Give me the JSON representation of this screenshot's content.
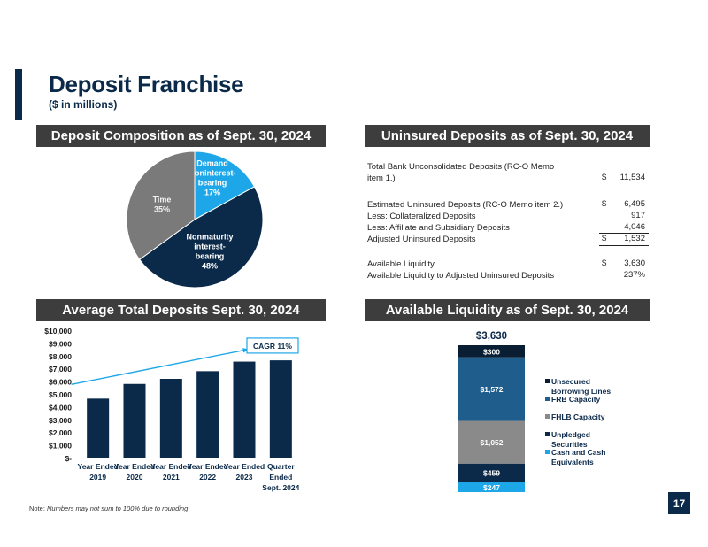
{
  "title": "Deposit Franchise",
  "subtitle": "($ in millions)",
  "headers": {
    "composition": "Deposit Composition as of Sept. 30, 2024",
    "uninsured": "Uninsured Deposits as of Sept. 30, 2024",
    "average": "Average Total Deposits Sept. 30, 2024",
    "liquidity": "Available Liquidity as of Sept. 30, 2024"
  },
  "uninsured_table": {
    "r1_label_line1": "Total Bank Unconsolidated Deposits (RC-O Memo",
    "r1_label_line2": "item 1.)",
    "r1_currency": "$",
    "r1_value": "11,534",
    "r2_label": "Estimated Uninsured Deposits (RC-O Memo item 2.)",
    "r2_currency": "$",
    "r2_value": "6,495",
    "r3_label": "Less: Collateralized Deposits",
    "r3_value": "917",
    "r4_label": "Less: Affiliate and Subsidiary Deposits",
    "r4_value": "4,046",
    "r5_label": "Adjusted Uninsured Deposits",
    "r5_currency": "$",
    "r5_value": "1,532",
    "r6_label": "Available Liquidity",
    "r6_currency": "$",
    "r6_value": "3,630",
    "r7_label": "Available Liquidity to Adjusted Uninsured Deposits",
    "r7_value": "237%"
  },
  "note_prefix": "Note: ",
  "note_text": "Numbers may not sum to 100% due to rounding",
  "page_number": "17",
  "chart_data": [
    {
      "type": "pie",
      "slices": [
        {
          "label_lines": [
            "Demand",
            "Noninterest-",
            "bearing",
            "17%"
          ],
          "value": 17,
          "color": "#1ea7e8"
        },
        {
          "label_lines": [
            "Nonmaturity",
            "interest-",
            "bearing",
            "48%"
          ],
          "value": 48,
          "color": "#0b2a4a"
        },
        {
          "label_lines": [
            "Time",
            "35%"
          ],
          "value": 35,
          "color": "#7a7a7a"
        }
      ]
    },
    {
      "type": "bar",
      "categories": [
        [
          "Year Ended",
          "2019"
        ],
        [
          "Year Ended",
          "2020"
        ],
        [
          "Year Ended",
          "2021"
        ],
        [
          "Year Ended",
          "2022"
        ],
        [
          "Year Ended",
          "2023"
        ],
        [
          "Quarter",
          "Ended",
          "Sept. 2024"
        ]
      ],
      "values": [
        4700,
        5850,
        6250,
        6850,
        7600,
        7700
      ],
      "yticks": [
        "$10,000",
        "$9,000",
        "$8,000",
        "$7,000",
        "$6,000",
        "$5,000",
        "$4,000",
        "$3,000",
        "$2,000",
        "$1,000",
        "$-"
      ],
      "ylim": [
        0,
        10000
      ],
      "annotation": "CAGR 11%",
      "color": "#0b2a4a"
    },
    {
      "type": "bar",
      "stacked": true,
      "total_label": "$3,630",
      "segments": [
        {
          "name": "Cash and Cash Equivalents",
          "legend_lines": [
            "Cash and Cash",
            "Equivalents"
          ],
          "value": 247,
          "label": "$247",
          "color": "#1ea7e8"
        },
        {
          "name": "Unpledged Securities",
          "legend_lines": [
            "Unpledged",
            "Securities"
          ],
          "value": 459,
          "label": "$459",
          "color": "#0b2a4a"
        },
        {
          "name": "FHLB Capacity",
          "legend_lines": [
            "FHLB Capacity"
          ],
          "value": 1052,
          "label": "$1,052",
          "color": "#8a8a8a"
        },
        {
          "name": "FRB Capacity",
          "legend_lines": [
            "FRB Capacity"
          ],
          "value": 1572,
          "label": "$1,572",
          "color": "#1f5d8c"
        },
        {
          "name": "Unsecured Borrowing Lines",
          "legend_lines": [
            "Unsecured",
            "Borrowing Lines"
          ],
          "value": 300,
          "label": "$300",
          "color": "#0a1e33"
        }
      ]
    }
  ]
}
